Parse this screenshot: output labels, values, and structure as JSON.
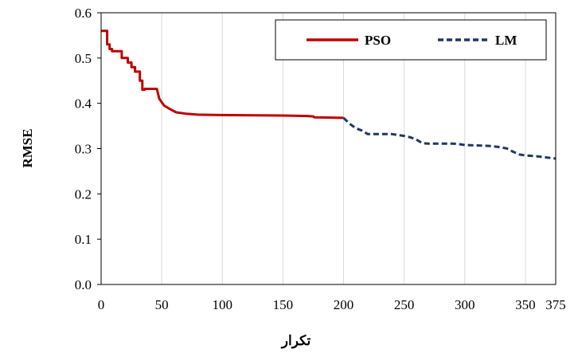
{
  "chart_data": {
    "type": "line",
    "title": "",
    "xlabel": "تکرار",
    "ylabel": "RMSE",
    "xlim": [
      0,
      375
    ],
    "ylim": [
      0,
      0.6
    ],
    "x_ticks": [
      0,
      50,
      100,
      150,
      200,
      250,
      300,
      350,
      375
    ],
    "x_tick_labels": [
      "0",
      "50",
      "100",
      "150",
      "200",
      "250",
      "300",
      "350",
      "375"
    ],
    "y_ticks": [
      0,
      0.1,
      0.2,
      0.3,
      0.4,
      0.5,
      0.6
    ],
    "y_tick_labels": [
      "0.0",
      "0.1",
      "0.2",
      "0.3",
      "0.4",
      "0.5",
      "0.6"
    ],
    "grid": "vertical",
    "legend_position": "top-right",
    "series": [
      {
        "name": "PSO",
        "color": "#C00000",
        "style": "solid",
        "x": [
          0,
          5,
          5,
          7,
          7,
          9,
          9,
          17,
          17,
          22,
          22,
          25,
          25,
          28,
          28,
          32,
          32,
          34,
          34,
          36,
          36,
          46,
          48,
          52,
          57,
          62,
          70,
          80,
          100,
          150,
          170,
          175,
          176,
          200
        ],
        "y": [
          0.56,
          0.56,
          0.53,
          0.53,
          0.52,
          0.52,
          0.515,
          0.515,
          0.5,
          0.5,
          0.49,
          0.49,
          0.48,
          0.48,
          0.47,
          0.47,
          0.45,
          0.45,
          0.43,
          0.43,
          0.432,
          0.432,
          0.41,
          0.395,
          0.387,
          0.38,
          0.377,
          0.375,
          0.374,
          0.373,
          0.372,
          0.371,
          0.369,
          0.368
        ]
      },
      {
        "name": "LM",
        "color": "#1F3864",
        "style": "dashed",
        "x": [
          200,
          205,
          210,
          215,
          220,
          240,
          245,
          250,
          255,
          260,
          265,
          270,
          285,
          290,
          295,
          300,
          310,
          320,
          330,
          335,
          340,
          345,
          350,
          360,
          375
        ],
        "y": [
          0.368,
          0.355,
          0.345,
          0.34,
          0.332,
          0.332,
          0.33,
          0.328,
          0.325,
          0.32,
          0.312,
          0.311,
          0.311,
          0.311,
          0.31,
          0.308,
          0.307,
          0.306,
          0.303,
          0.3,
          0.293,
          0.287,
          0.285,
          0.283,
          0.278
        ]
      }
    ]
  }
}
